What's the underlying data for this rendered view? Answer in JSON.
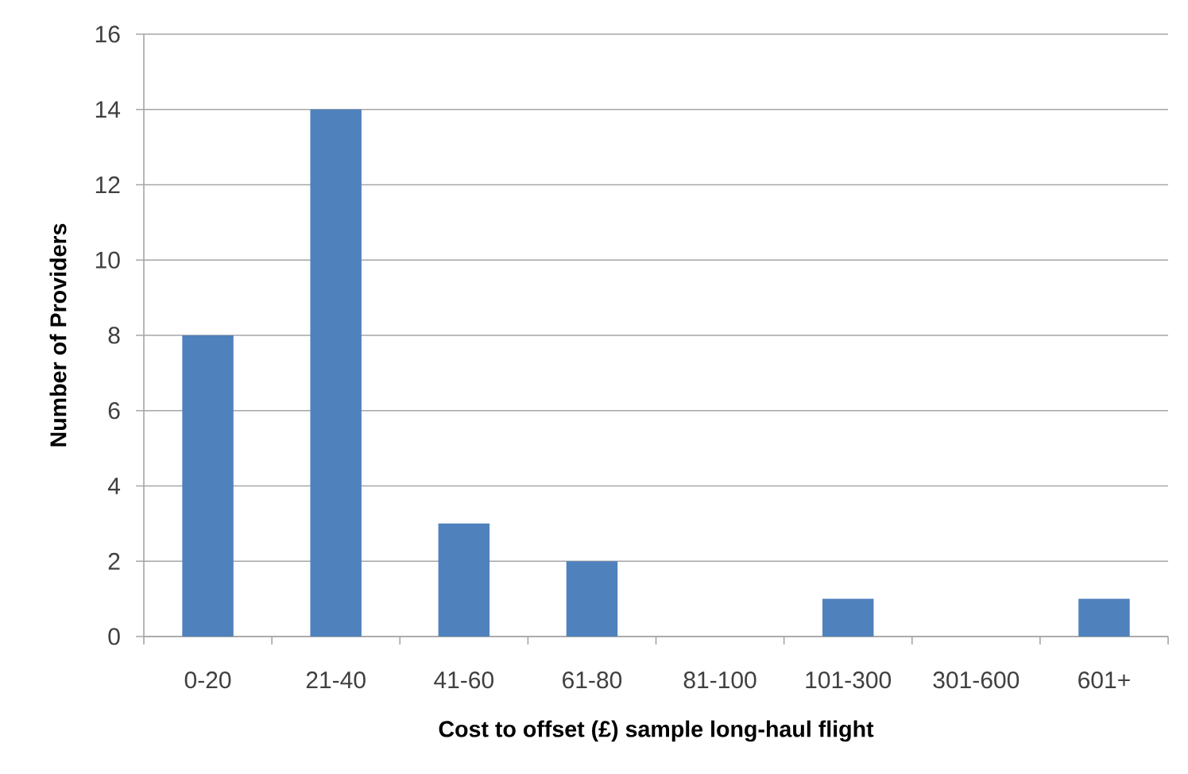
{
  "chart_data": {
    "type": "bar",
    "xlabel": "Cost to offset (£) sample long-haul flight",
    "ylabel": "Number of Providers",
    "categories": [
      "0-20",
      "21-40",
      "41-60",
      "61-80",
      "81-100",
      "101-300",
      "301-600",
      "601+"
    ],
    "values": [
      8,
      14,
      3,
      2,
      0,
      1,
      0,
      1
    ],
    "color": "#4f81bd",
    "ylim": [
      0,
      16
    ],
    "yticks": [
      0,
      2,
      4,
      6,
      8,
      10,
      12,
      14,
      16
    ],
    "grid": "y"
  }
}
